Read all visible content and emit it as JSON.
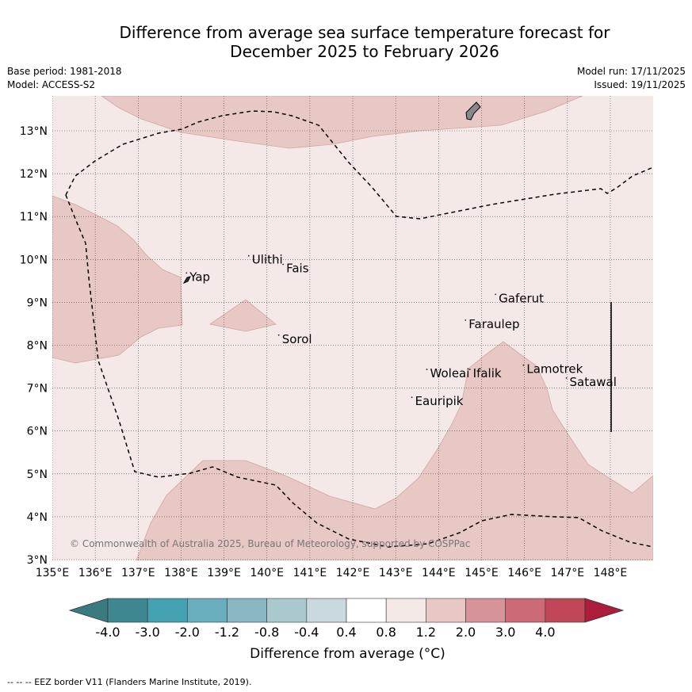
{
  "title": {
    "line1": "Difference from average sea surface temperature forecast for",
    "line2": "December 2025 to February 2026"
  },
  "meta": {
    "base_period": "Base period: 1981-2018",
    "model": "Model: ACCESS-S2",
    "model_run": "Model run: 17/11/2025",
    "issued": "Issued: 19/11/2025"
  },
  "axes": {
    "lon_ticks": [
      "135°E",
      "136°E",
      "137°E",
      "138°E",
      "139°E",
      "140°E",
      "141°E",
      "142°E",
      "143°E",
      "144°E",
      "145°E",
      "146°E",
      "147°E",
      "148°E"
    ],
    "lat_ticks": [
      "3°N",
      "4°N",
      "5°N",
      "6°N",
      "7°N",
      "8°N",
      "9°N",
      "10°N",
      "11°N",
      "12°N",
      "13°N"
    ],
    "lon_range": [
      135,
      149
    ],
    "lat_range": [
      3,
      13.8
    ]
  },
  "places": [
    {
      "name": "Yap",
      "lon": 138.2,
      "lat": 9.5
    },
    {
      "name": "Ulithi",
      "lon": 139.65,
      "lat": 9.9
    },
    {
      "name": "Fais",
      "lon": 140.45,
      "lat": 9.7
    },
    {
      "name": "Gaferut",
      "lon": 145.4,
      "lat": 9.0
    },
    {
      "name": "Faraulep",
      "lon": 144.7,
      "lat": 8.4
    },
    {
      "name": "Sorol",
      "lon": 140.35,
      "lat": 8.05
    },
    {
      "name": "Woleai",
      "lon": 143.8,
      "lat": 7.25
    },
    {
      "name": "Ifalik",
      "lon": 144.8,
      "lat": 7.25
    },
    {
      "name": "Lamotrek",
      "lon": 146.05,
      "lat": 7.35
    },
    {
      "name": "Satawal",
      "lon": 147.05,
      "lat": 7.05
    },
    {
      "name": "Eauripik",
      "lon": 143.45,
      "lat": 6.6
    }
  ],
  "copyright": "© Commonwealth of Australia 2025, Bureau of Meteorology, supported by COSPPac",
  "colorbar": {
    "labels": [
      "-4.0",
      "-3.0",
      "-2.0",
      "-1.2",
      "-0.8",
      "-0.4",
      "0.4",
      "0.8",
      "1.2",
      "2.0",
      "3.0",
      "4.0"
    ],
    "colors": [
      "#3f8790",
      "#44a1b2",
      "#68aebd",
      "#88b6c2",
      "#a9c9cf",
      "#c9dade",
      "#ffffff",
      "#f5e9e8",
      "#e8c8c4",
      "#d7939a",
      "#cd6a77",
      "#c14658"
    ],
    "under_color": "#3a7b82",
    "over_color": "#ab1d3a",
    "title": "Difference from average (°C)"
  },
  "footnote": "--  --  -- EEZ border V11 (Flanders Marine Institute, 2019).",
  "fill_colors": {
    "background": "#f5e9e8",
    "warm": "#e8c8c4",
    "contour": "#cfa7a2"
  }
}
